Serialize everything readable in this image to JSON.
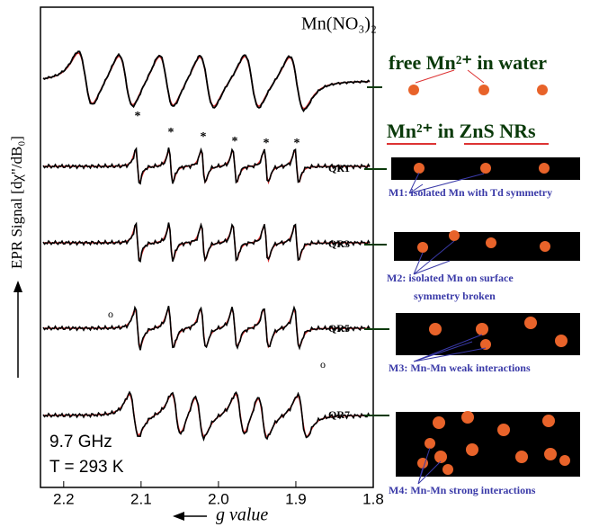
{
  "chart_data": {
    "type": "spectra",
    "y_label": "EPR Signal [dχ\"/dB₀]",
    "x_label": "g value",
    "xlim": [
      2.23,
      1.8
    ],
    "xticks": [
      2.2,
      2.1,
      {
        "value": 2,
        "label": "2.0"
      },
      1.9,
      1.8
    ],
    "spectra_labels": [
      "Mn(NO₃)₂",
      "QR1",
      "QR3",
      "QR5",
      "QR7"
    ],
    "annotations": {
      "peak_marker": "*",
      "side_marker": "o",
      "frequency": "9.7 GHz",
      "temperature": "T = 293 K"
    }
  },
  "panel": {
    "free_label": "free Mn²⁺ in water",
    "ns_label": "Mn²⁺ in ZnS NRs",
    "models": [
      "M1: isolated Mn with Td symmetry",
      "M2: isolated Mn on surface",
      "symmetry broken",
      "M3: Mn-Mn weak interactions",
      "M4: Mn-Mn strong interactions"
    ]
  }
}
